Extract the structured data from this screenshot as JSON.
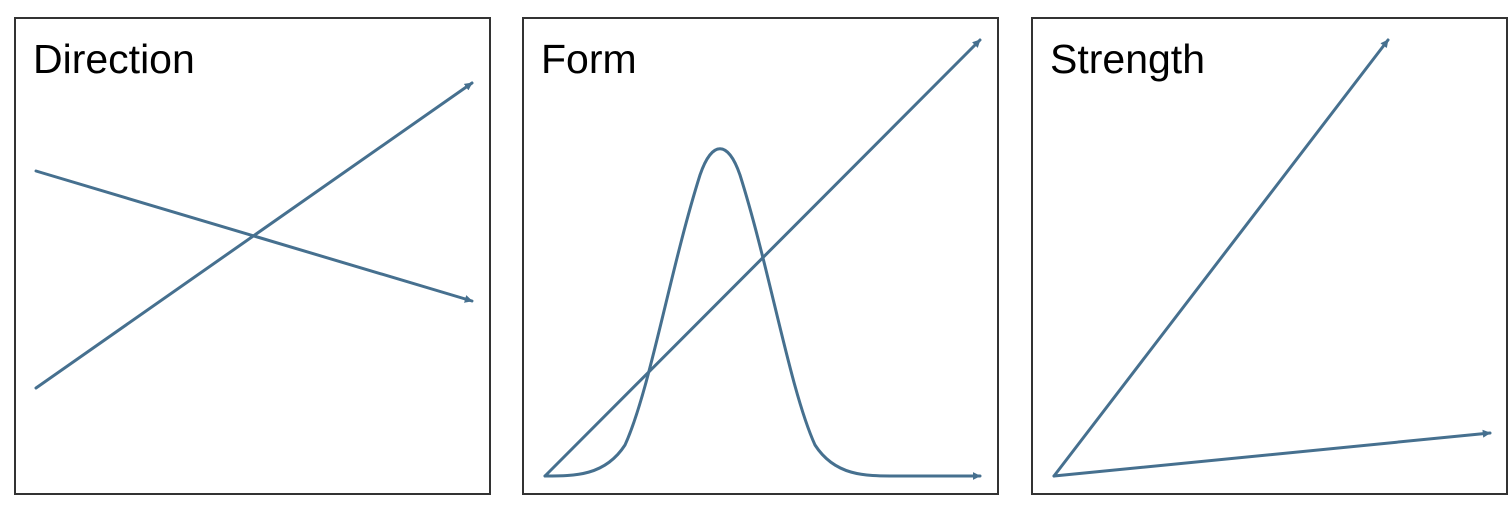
{
  "panels": [
    {
      "title": "Direction"
    },
    {
      "title": "Form"
    },
    {
      "title": "Strength"
    }
  ],
  "colors": {
    "stroke": "#46708f",
    "border": "#333333"
  }
}
